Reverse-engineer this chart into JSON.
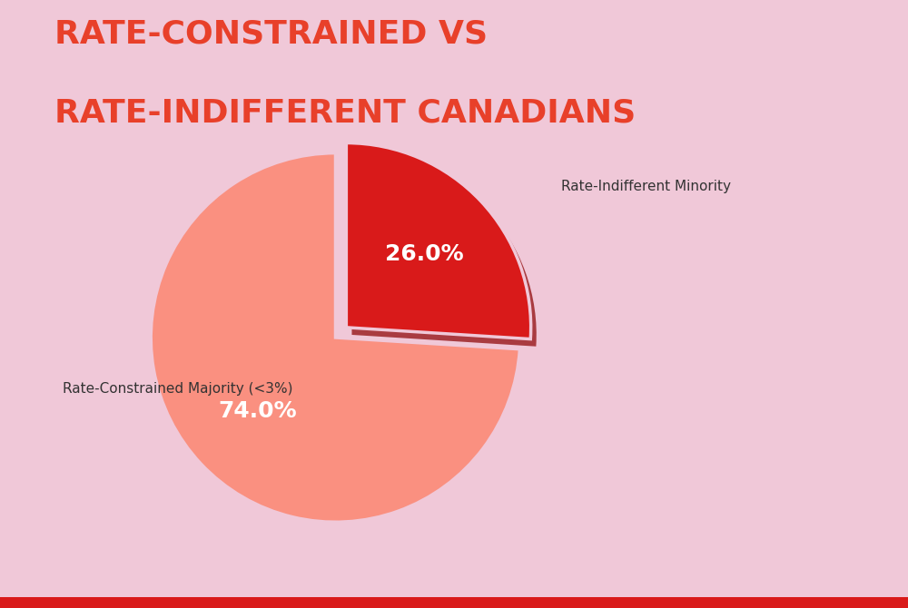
{
  "title_line1": "RATE-CONSTRAINED VS",
  "title_line2": "RATE-INDIFFERENT CANADIANS",
  "title_color": "#E8402A",
  "title_fontsize": 26,
  "title_fontweight": "bold",
  "background_color": "#F0C8D8",
  "slices": [
    74.0,
    26.0
  ],
  "slice_colors": [
    "#FA9080",
    "#D91A1A"
  ],
  "slice_labels": [
    "Rate-Constrained Majority (<3%)",
    "Rate-Indifferent Minority"
  ],
  "slice_pct_labels": [
    "74.0%",
    "26.0%"
  ],
  "slice_text_colors": [
    "#FFFFFF",
    "#FFFFFF"
  ],
  "explode_index": 1,
  "explode_amount": 0.08,
  "startangle": 90,
  "pct_fontsize": 18,
  "label_fontsize": 11,
  "bottom_bar_color": "#D91A1A",
  "bottom_bar_height": 0.018,
  "shadow_color": "#8B0000",
  "label_color": "#333333",
  "edge_color": "#F0C8D8",
  "edge_linewidth": 2.5
}
